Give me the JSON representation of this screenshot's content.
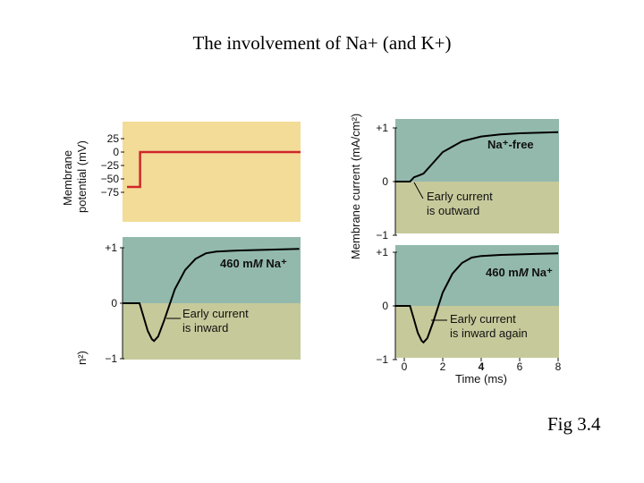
{
  "title": "The involvement of Na+ (and K+)",
  "fig_label": "Fig 3.4",
  "colors": {
    "voltage_bg": "#f2dc97",
    "upper_bg": "#93b9ad",
    "lower_bg": "#c6c99a",
    "step": "#d0262b",
    "trace": "#000000"
  },
  "chart_data": [
    {
      "type": "line",
      "panel": "voltage-step",
      "ylabel": [
        "Membrane",
        "potential (mV)"
      ],
      "yticks": [
        "25",
        "0",
        "−25",
        "−50",
        "−75"
      ],
      "ylim": [
        -85,
        35
      ],
      "x": [
        0,
        0.6,
        0.6,
        8
      ],
      "values": [
        -65,
        -65,
        0,
        0
      ]
    },
    {
      "type": "line",
      "panel": "na-460-left",
      "yticks": [
        "+1",
        "0",
        "−1"
      ],
      "ylim": [
        -1,
        1
      ],
      "label_main": "460 m",
      "label_ital": "M",
      "label_rest": " Na⁺",
      "annotation": [
        "Early current",
        "is inward"
      ],
      "x": [
        0,
        0.3,
        0.5,
        0.7,
        0.9,
        1.0,
        1.2,
        1.5,
        2.0,
        2.5,
        3.0,
        3.5,
        4.0,
        5.0,
        6.0,
        7.0,
        8.0
      ],
      "values": [
        0,
        0,
        -0.25,
        -0.5,
        -0.65,
        -0.68,
        -0.6,
        -0.3,
        0.25,
        0.6,
        0.8,
        0.9,
        0.93,
        0.95,
        0.96,
        0.97,
        0.98
      ]
    },
    {
      "type": "line",
      "panel": "na-free",
      "ylabel": "Membrane current (mA/cm²)",
      "yticks": [
        "+1",
        "0",
        "−1"
      ],
      "ylim": [
        -1,
        1
      ],
      "label_main": "Na⁺-free",
      "annotation": [
        "Early current",
        "is outward"
      ],
      "x": [
        0,
        0.3,
        0.5,
        0.8,
        1.0,
        1.5,
        2.0,
        3.0,
        4.0,
        5.0,
        6.0,
        7.0,
        8.0
      ],
      "values": [
        0,
        0,
        0.08,
        0.12,
        0.15,
        0.35,
        0.55,
        0.75,
        0.84,
        0.88,
        0.9,
        0.91,
        0.92
      ]
    },
    {
      "type": "line",
      "panel": "na-460-right",
      "xlabel": "Time (ms)",
      "xticks": [
        "0",
        "2",
        "4",
        "6",
        "8"
      ],
      "yticks": [
        "+1",
        "0",
        "−1"
      ],
      "ylim": [
        -1,
        1
      ],
      "xlim": [
        -0.8,
        8
      ],
      "label_main": "460 m",
      "label_ital": "M",
      "label_rest": " Na⁺",
      "annotation": [
        "Early current",
        "is inward again"
      ],
      "x": [
        0,
        0.3,
        0.5,
        0.7,
        0.9,
        1.0,
        1.2,
        1.5,
        2.0,
        2.5,
        3.0,
        3.5,
        4.0,
        5.0,
        6.0,
        7.0,
        8.0
      ],
      "values": [
        0,
        0,
        -0.25,
        -0.5,
        -0.65,
        -0.68,
        -0.6,
        -0.3,
        0.25,
        0.6,
        0.8,
        0.9,
        0.93,
        0.95,
        0.96,
        0.97,
        0.98
      ]
    }
  ],
  "cut_label": "n²)"
}
